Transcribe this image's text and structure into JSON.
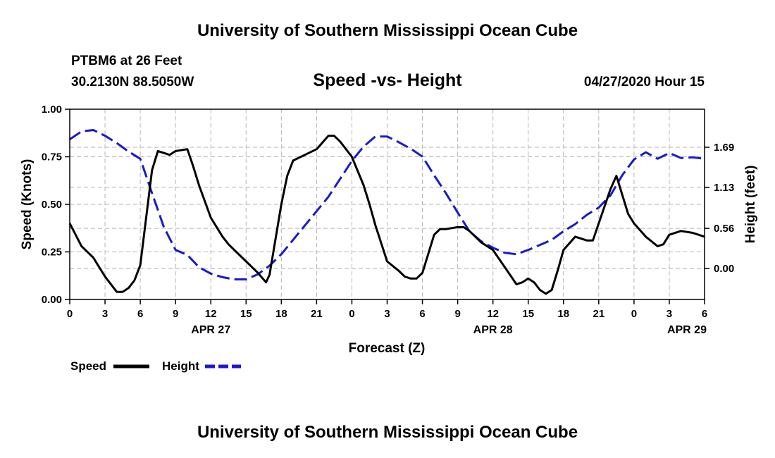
{
  "header": {
    "title_top": "University of Southern Mississippi Ocean Cube",
    "station": "PTBM6 at 26 Feet",
    "coords": "30.2130N 88.5050W",
    "chart_title": "Speed -vs- Height",
    "date": "04/27/2020 Hour 15"
  },
  "footer": {
    "title_bottom": "University of Southern Mississippi Ocean Cube"
  },
  "colors": {
    "speed": "#000000",
    "height": "#1a1acc",
    "grid": "#b4b4b4"
  },
  "chart_data": {
    "type": "line",
    "title": "Speed -vs- Height",
    "xlabel": "Forecast (Z)",
    "ylabel_left": "Speed (Knots)",
    "ylabel_right": "Height (feet)",
    "x_range": [
      0,
      54
    ],
    "x_ticks": [
      0,
      3,
      6,
      9,
      12,
      15,
      18,
      21,
      24,
      27,
      30,
      33,
      36,
      39,
      42,
      45,
      48,
      51,
      54
    ],
    "x_tick_labels": [
      "0",
      "3",
      "6",
      "9",
      "12",
      "15",
      "18",
      "21",
      "0",
      "3",
      "6",
      "9",
      "12",
      "15",
      "18",
      "21",
      "0",
      "3",
      "6"
    ],
    "date_labels": [
      {
        "x": 12,
        "label": "APR 27"
      },
      {
        "x": 36,
        "label": "APR 28"
      },
      {
        "x": 52.5,
        "label": "APR 29"
      }
    ],
    "y_left_range": [
      0,
      1
    ],
    "y_left_ticks": [
      0,
      0.25,
      0.5,
      0.75,
      1.0
    ],
    "y_left_tick_labels": [
      "0.00",
      "0.25",
      "0.50",
      "0.75",
      "1.00"
    ],
    "y_right_range": [
      -0.43,
      2.22
    ],
    "y_right_ticks": [
      0.0,
      0.56,
      1.13,
      1.69
    ],
    "y_right_tick_labels": [
      "0.00",
      "0.56",
      "1.13",
      "1.69"
    ],
    "grid": true,
    "legend": {
      "position": "bottom-left",
      "entries": [
        {
          "name": "Speed",
          "style": "solid"
        },
        {
          "name": "Height",
          "style": "dashed"
        }
      ]
    },
    "series": [
      {
        "name": "Speed",
        "axis": "left",
        "style": "solid",
        "x": [
          0,
          1,
          2,
          3,
          4,
          4.5,
          5,
          5.5,
          6,
          7,
          7.5,
          8,
          8.5,
          9,
          10,
          10.5,
          11,
          12,
          13,
          13.5,
          14,
          15,
          16,
          16.7,
          17,
          18,
          18.5,
          19,
          20,
          21,
          22,
          22.5,
          23,
          24,
          25,
          25.5,
          26,
          27,
          28,
          28.5,
          29,
          29.5,
          30,
          31,
          31.5,
          32,
          33,
          33.5,
          34,
          35,
          36,
          37,
          38,
          38.5,
          39,
          39.5,
          40,
          40.5,
          41,
          41.5,
          42,
          43,
          44,
          44.5,
          45,
          46,
          46.5,
          47,
          47.5,
          48,
          49,
          50,
          50.5,
          51,
          52,
          53,
          54
        ],
        "values": [
          0.4,
          0.28,
          0.22,
          0.12,
          0.04,
          0.04,
          0.06,
          0.1,
          0.18,
          0.68,
          0.78,
          0.77,
          0.76,
          0.78,
          0.79,
          0.7,
          0.6,
          0.43,
          0.33,
          0.29,
          0.26,
          0.2,
          0.14,
          0.09,
          0.13,
          0.5,
          0.65,
          0.73,
          0.76,
          0.79,
          0.86,
          0.86,
          0.83,
          0.75,
          0.6,
          0.5,
          0.39,
          0.2,
          0.15,
          0.12,
          0.11,
          0.11,
          0.14,
          0.34,
          0.37,
          0.37,
          0.38,
          0.38,
          0.36,
          0.3,
          0.26,
          0.17,
          0.08,
          0.09,
          0.11,
          0.09,
          0.05,
          0.03,
          0.05,
          0.15,
          0.26,
          0.33,
          0.31,
          0.31,
          0.4,
          0.58,
          0.65,
          0.55,
          0.45,
          0.4,
          0.33,
          0.28,
          0.29,
          0.34,
          0.36,
          0.35,
          0.33
        ]
      },
      {
        "name": "Height",
        "axis": "right",
        "style": "dashed",
        "x": [
          0,
          1,
          2,
          3,
          4,
          5,
          6,
          7,
          8,
          9,
          10,
          11,
          12,
          13,
          14,
          15,
          16,
          17,
          18,
          19,
          20,
          21,
          22,
          23,
          24,
          25,
          26,
          27,
          28,
          29,
          30,
          31,
          32,
          33,
          34,
          35,
          36,
          37,
          38,
          39,
          40,
          41,
          42,
          43,
          44,
          45,
          46,
          47,
          48,
          49,
          50,
          51,
          52,
          53,
          54
        ],
        "values": [
          1.8,
          1.91,
          1.93,
          1.85,
          1.75,
          1.63,
          1.53,
          1.05,
          0.58,
          0.26,
          0.19,
          0.02,
          -0.07,
          -0.12,
          -0.15,
          -0.15,
          -0.08,
          0.04,
          0.2,
          0.4,
          0.6,
          0.8,
          1.0,
          1.25,
          1.5,
          1.7,
          1.84,
          1.84,
          1.76,
          1.67,
          1.56,
          1.3,
          1.05,
          0.78,
          0.52,
          0.38,
          0.29,
          0.22,
          0.2,
          0.26,
          0.33,
          0.4,
          0.52,
          0.62,
          0.75,
          0.85,
          1.02,
          1.3,
          1.52,
          1.62,
          1.53,
          1.61,
          1.54,
          1.55,
          1.53
        ]
      }
    ]
  }
}
